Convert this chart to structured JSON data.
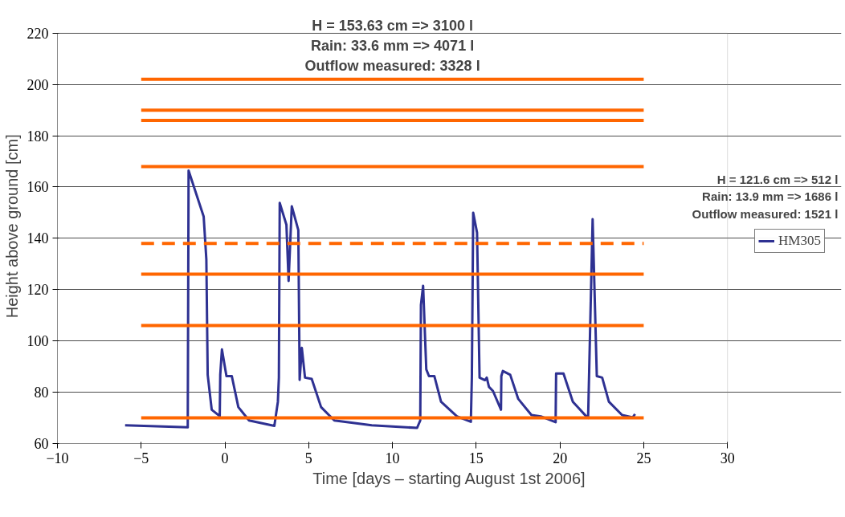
{
  "chart_data": {
    "type": "line",
    "xlabel": "Time [days – starting August 1st 2006]",
    "ylabel": "Height above ground  [cm]",
    "xlim": [
      -10,
      30
    ],
    "xticks": [
      -10,
      -5,
      0,
      5,
      10,
      15,
      20,
      25,
      30
    ],
    "ylim": [
      60,
      220
    ],
    "yticks": [
      60,
      80,
      100,
      120,
      140,
      160,
      180,
      200,
      220
    ],
    "grid": "y",
    "legend": "right",
    "marker": "none",
    "annotations": [
      "H = 153.63 cm => 3100 l\nRain: 33.6 mm => 4071 l\nOutflow measured: 3328 l",
      "H = 121.6 cm => 512 l\nRain: 13.9 mm => 1686 l\nOutflow measured: 1521 l"
    ],
    "series": [
      {
        "name": "HM305",
        "color": "#2e3192",
        "line_style": "solid",
        "x": [
          -5.96,
          -2.22,
          -2.17,
          -1.27,
          -1.11,
          -1.03,
          -0.79,
          -0.31,
          -0.28,
          -0.18,
          0.09,
          0.41,
          0.8,
          1.44,
          2.95,
          3.16,
          3.22,
          3.27,
          3.67,
          3.8,
          3.99,
          4.38,
          4.46,
          4.59,
          4.78,
          5.18,
          5.74,
          6.53,
          8.76,
          11.47,
          11.66,
          11.7,
          11.83,
          12.02,
          12.18,
          12.5,
          12.9,
          13.85,
          14.68,
          14.74,
          14.82,
          15.05,
          15.2,
          15.52,
          15.63,
          15.76,
          16.0,
          16.48,
          16.5,
          16.59,
          17.03,
          17.51,
          18.3,
          18.86,
          19.74,
          19.77,
          20.21,
          20.77,
          21.57,
          21.68,
          21.95,
          22.2,
          22.52,
          22.92,
          23.71,
          24.35,
          24.48
        ],
        "values": [
          67.1,
          66.3,
          166.4,
          148.5,
          131.8,
          86.8,
          73.2,
          70.7,
          86.8,
          96.7,
          86.3,
          86.3,
          74.2,
          69,
          66.9,
          76.3,
          85.7,
          153.8,
          145.3,
          123.4,
          152.5,
          143.2,
          84.8,
          97.3,
          85.7,
          85.2,
          74.2,
          69,
          67.1,
          66.1,
          69,
          114,
          121.5,
          88.9,
          86.3,
          86.3,
          76.3,
          70.6,
          68.5,
          85.7,
          150,
          142.2,
          85.7,
          84.7,
          85.7,
          82.1,
          80.5,
          73.2,
          86.3,
          88.3,
          86.8,
          77.4,
          71.1,
          70.6,
          68.3,
          87.3,
          87.3,
          76.3,
          70.6,
          70,
          147.5,
          86.3,
          85.7,
          76.3,
          71.1,
          70.2,
          71.5
        ]
      },
      {
        "color": "#ff6600",
        "line_style": "solid",
        "x": [
          -5,
          25
        ],
        "values": [
          202,
          202
        ]
      },
      {
        "color": "#ff6600",
        "line_style": "solid",
        "x": [
          -5,
          25
        ],
        "values": [
          190,
          190
        ]
      },
      {
        "color": "#ff6600",
        "line_style": "solid",
        "x": [
          -5,
          25
        ],
        "values": [
          186,
          186
        ]
      },
      {
        "color": "#ff6600",
        "line_style": "solid",
        "x": [
          -5,
          25
        ],
        "values": [
          168,
          168
        ]
      },
      {
        "color": "#ff6600",
        "line_style": "dashed",
        "x": [
          -5,
          25
        ],
        "values": [
          138,
          138
        ]
      },
      {
        "color": "#ff6600",
        "line_style": "solid",
        "x": [
          -5,
          25
        ],
        "values": [
          126,
          126
        ]
      },
      {
        "color": "#ff6600",
        "line_style": "solid",
        "x": [
          -5,
          25
        ],
        "values": [
          106,
          106
        ]
      },
      {
        "color": "#ff6600",
        "line_style": "solid",
        "x": [
          -5,
          25
        ],
        "values": [
          70,
          70
        ]
      }
    ]
  }
}
